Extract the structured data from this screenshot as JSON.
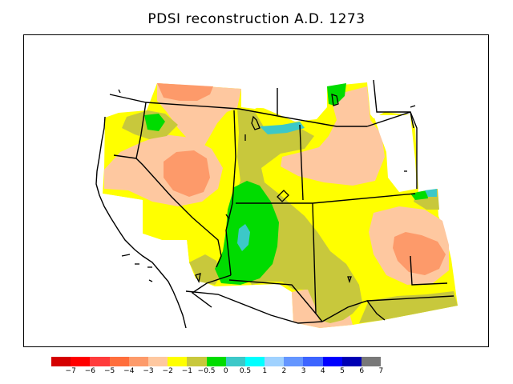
{
  "title": "PDSI reconstruction A.D. 1273",
  "legend": {
    "colors": [
      "#d40000",
      "#ff0000",
      "#ff3b3b",
      "#ff6e3c",
      "#fd9a6a",
      "#fec8a0",
      "#ffff00",
      "#c8c83c",
      "#00dc00",
      "#3cc8c8",
      "#00ffff",
      "#a0d2ff",
      "#6496ff",
      "#3c64ff",
      "#0000ff",
      "#0000b4",
      "#787878"
    ],
    "labels": [
      "−7",
      "−6",
      "−5",
      "−4",
      "−3",
      "−2",
      "−1",
      "−0.5",
      "0",
      "0.5",
      "1",
      "2",
      "3",
      "4",
      "5",
      "6",
      "7"
    ]
  },
  "regions": {
    "region_colors": {
      "very_dry": "#fd9a6a",
      "dry": "#fec8a0",
      "slightly_dry": "#ffff00",
      "near_normal": "#c8c83c",
      "slightly_wet": "#00dc00",
      "wet": "#3cc8c8"
    }
  }
}
